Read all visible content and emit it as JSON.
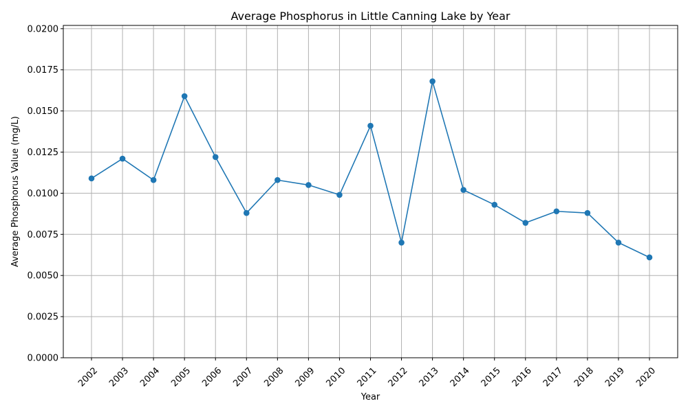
{
  "chart_data": {
    "type": "line",
    "title": "Average Phosphorus in Little Canning Lake by Year",
    "xlabel": "Year",
    "ylabel": "Average Phosphorus Value (mg/L)",
    "categories": [
      "2002",
      "2003",
      "2004",
      "2005",
      "2006",
      "2007",
      "2008",
      "2009",
      "2010",
      "2011",
      "2012",
      "2013",
      "2014",
      "2015",
      "2016",
      "2017",
      "2018",
      "2019",
      "2020"
    ],
    "series": [
      {
        "values": [
          0.0109,
          0.0121,
          0.0108,
          0.0159,
          0.0122,
          0.0088,
          0.0108,
          0.0105,
          0.0099,
          0.0141,
          0.007,
          0.0168,
          0.0102,
          0.0093,
          0.0082,
          0.0089,
          0.0088,
          0.007,
          0.0061
        ],
        "color": "#1f77b4",
        "marker": "circle"
      }
    ],
    "ylim": [
      0,
      0.0202
    ],
    "yticks": [
      "0.0000",
      "0.0025",
      "0.0050",
      "0.0075",
      "0.0100",
      "0.0125",
      "0.0150",
      "0.0175",
      "0.0200"
    ],
    "ytick_values": [
      0,
      0.0025,
      0.005,
      0.0075,
      0.01,
      0.0125,
      0.015,
      0.0175,
      0.02
    ],
    "grid": true,
    "grid_color": "#b0b0b0"
  }
}
